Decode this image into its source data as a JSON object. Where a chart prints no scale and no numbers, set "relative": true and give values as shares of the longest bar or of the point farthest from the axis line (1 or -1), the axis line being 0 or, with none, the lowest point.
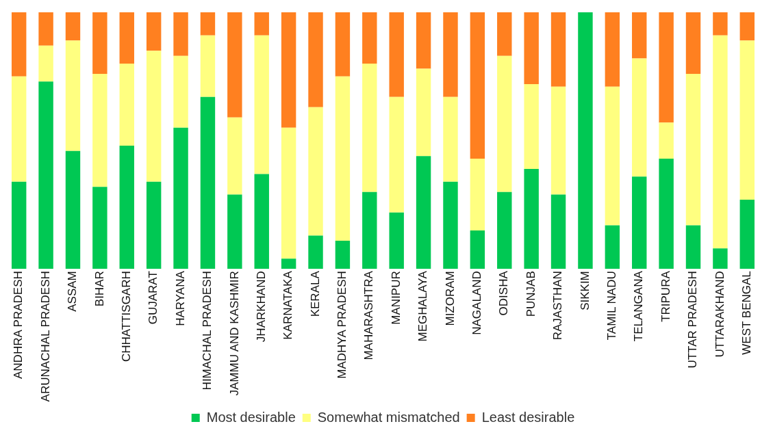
{
  "chart_data": {
    "type": "bar",
    "stacked": true,
    "relative": true,
    "legend": "bottom",
    "grid": false,
    "categories": [
      "ANDHRA PRADESH",
      "ARUNACHAL PRADESH",
      "ASSAM",
      "BIHAR",
      "CHHATTISGARH",
      "GUJARAT",
      "HARYANA",
      "HIMACHAL PRADESH",
      "JAMMU AND KASHMIR",
      "JHARKHAND",
      "KARNATAKA",
      "KERALA",
      "MADHYA PRADESH",
      "MAHARASHTRA",
      "MANIPUR",
      "MEGHALAYA",
      "MIZORAM",
      "NAGALAND",
      "ODISHA",
      "PUNJAB",
      "RAJASTHAN",
      "SIKKIM",
      "TAMIL NADU",
      "TELANGANA",
      "TRIPURA",
      "UTTAR PRADESH",
      "UTTARAKHAND",
      "WEST BENGAL"
    ],
    "series": [
      {
        "name": "Most desirable",
        "color": "#00c853",
        "values": [
          0.34,
          0.73,
          0.46,
          0.32,
          0.48,
          0.34,
          0.55,
          0.67,
          0.29,
          0.37,
          0.04,
          0.13,
          0.11,
          0.3,
          0.22,
          0.44,
          0.34,
          0.15,
          0.3,
          0.39,
          0.29,
          1,
          0.17,
          0.36,
          0.43,
          0.17,
          0.08,
          0.27
        ]
      },
      {
        "name": "Somewhat mismatched",
        "color": "#ffff80",
        "values": [
          0.41,
          0.14,
          0.43,
          0.44,
          0.32,
          0.51,
          0.28,
          0.24,
          0.3,
          0.54,
          0.51,
          0.5,
          0.64,
          0.5,
          0.45,
          0.34,
          0.33,
          0.28,
          0.53,
          0.33,
          0.42,
          0,
          0.54,
          0.46,
          0.14,
          0.59,
          0.83,
          0.62
        ]
      },
      {
        "name": "Least desirable",
        "color": "#ff8020",
        "values": [
          0.25,
          0.13,
          0.11,
          0.24,
          0.2,
          0.15,
          0.17,
          0.09,
          0.41,
          0.09,
          0.45,
          0.37,
          0.25,
          0.2,
          0.33,
          0.22,
          0.33,
          0.57,
          0.17,
          0.28,
          0.29,
          0,
          0.29,
          0.18,
          0.43,
          0.24,
          0.09,
          0.11
        ]
      }
    ]
  }
}
